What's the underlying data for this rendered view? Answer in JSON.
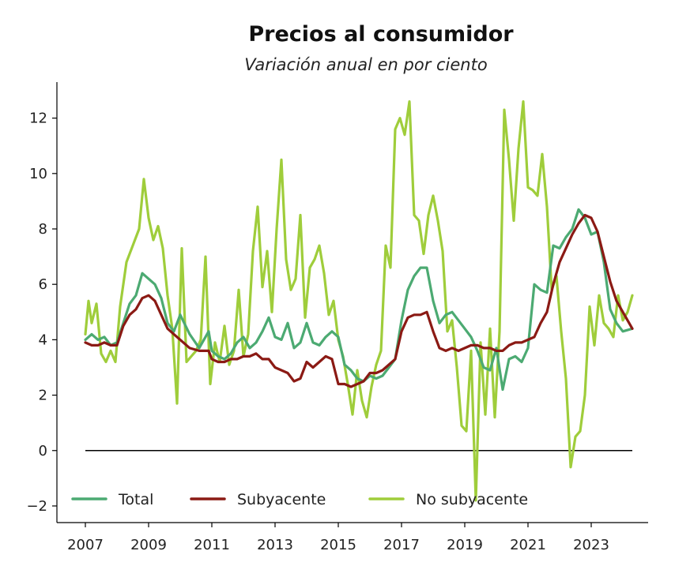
{
  "chart_data": {
    "type": "line",
    "title": "Precios al consumidor",
    "subtitle": "Variación anual en por ciento",
    "xlabel": "",
    "ylabel": "",
    "xlim": [
      2006.1,
      2024.8
    ],
    "ylim": [
      -2.6,
      13.3
    ],
    "x_ticks": [
      2007,
      2009,
      2011,
      2013,
      2015,
      2017,
      2019,
      2021,
      2023
    ],
    "y_ticks": [
      -2,
      0,
      2,
      4,
      6,
      8,
      10,
      12
    ],
    "y_tick_labels": [
      "−2",
      "0",
      "2",
      "4",
      "6",
      "8",
      "10",
      "12"
    ],
    "reference_line": {
      "y": 0,
      "x_from": 2007.0,
      "x_to": 2024.3,
      "color": "#000000"
    },
    "grid": false,
    "legend_position": "bottom",
    "series": [
      {
        "name": "Total",
        "color": "#4caa72",
        "x": [
          2007.0,
          2007.2,
          2007.4,
          2007.6,
          2007.8,
          2008.0,
          2008.2,
          2008.4,
          2008.6,
          2008.8,
          2009.0,
          2009.2,
          2009.4,
          2009.6,
          2009.8,
          2010.0,
          2010.3,
          2010.6,
          2010.9,
          2011.0,
          2011.2,
          2011.4,
          2011.6,
          2011.8,
          2012.0,
          2012.2,
          2012.4,
          2012.6,
          2012.8,
          2013.0,
          2013.2,
          2013.4,
          2013.6,
          2013.8,
          2014.0,
          2014.2,
          2014.4,
          2014.6,
          2014.8,
          2015.0,
          2015.2,
          2015.4,
          2015.6,
          2015.8,
          2016.0,
          2016.2,
          2016.4,
          2016.6,
          2016.8,
          2017.0,
          2017.2,
          2017.4,
          2017.6,
          2017.8,
          2018.0,
          2018.2,
          2018.4,
          2018.6,
          2018.8,
          2019.0,
          2019.2,
          2019.4,
          2019.6,
          2019.8,
          2020.0,
          2020.2,
          2020.4,
          2020.6,
          2020.8,
          2021.0,
          2021.2,
          2021.4,
          2021.6,
          2021.8,
          2022.0,
          2022.2,
          2022.4,
          2022.6,
          2022.8,
          2023.0,
          2023.2,
          2023.4,
          2023.6,
          2023.8,
          2024.0,
          2024.3
        ],
        "y": [
          4.0,
          4.2,
          4.0,
          4.1,
          3.8,
          3.9,
          4.6,
          5.3,
          5.6,
          6.4,
          6.2,
          6.0,
          5.5,
          4.6,
          4.3,
          4.9,
          4.2,
          3.7,
          4.3,
          3.6,
          3.4,
          3.3,
          3.5,
          3.9,
          4.1,
          3.7,
          3.9,
          4.3,
          4.8,
          4.1,
          4.0,
          4.6,
          3.7,
          3.9,
          4.6,
          3.9,
          3.8,
          4.1,
          4.3,
          4.1,
          3.1,
          2.9,
          2.6,
          2.5,
          2.7,
          2.6,
          2.7,
          3.0,
          3.3,
          4.7,
          5.8,
          6.3,
          6.6,
          6.6,
          5.4,
          4.6,
          4.9,
          5.0,
          4.7,
          4.4,
          4.1,
          3.6,
          3.0,
          2.9,
          3.7,
          2.2,
          3.3,
          3.4,
          3.2,
          3.7,
          6.0,
          5.8,
          5.7,
          7.4,
          7.3,
          7.7,
          8.0,
          8.7,
          8.4,
          7.8,
          7.9,
          6.8,
          5.1,
          4.6,
          4.3,
          4.4
        ],
        "label_note": ""
      },
      {
        "name": "Subyacente",
        "color": "#8b1a14",
        "x": [
          2007.0,
          2007.2,
          2007.4,
          2007.6,
          2007.8,
          2008.0,
          2008.2,
          2008.4,
          2008.6,
          2008.8,
          2009.0,
          2009.2,
          2009.4,
          2009.6,
          2009.8,
          2010.0,
          2010.3,
          2010.6,
          2010.9,
          2011.0,
          2011.2,
          2011.4,
          2011.6,
          2011.8,
          2012.0,
          2012.2,
          2012.4,
          2012.6,
          2012.8,
          2013.0,
          2013.2,
          2013.4,
          2013.6,
          2013.8,
          2014.0,
          2014.2,
          2014.4,
          2014.6,
          2014.8,
          2015.0,
          2015.2,
          2015.4,
          2015.6,
          2015.8,
          2016.0,
          2016.2,
          2016.4,
          2016.6,
          2016.8,
          2017.0,
          2017.2,
          2017.4,
          2017.6,
          2017.8,
          2018.0,
          2018.2,
          2018.4,
          2018.6,
          2018.8,
          2019.0,
          2019.2,
          2019.4,
          2019.6,
          2019.8,
          2020.0,
          2020.2,
          2020.4,
          2020.6,
          2020.8,
          2021.0,
          2021.2,
          2021.4,
          2021.6,
          2021.8,
          2022.0,
          2022.2,
          2022.4,
          2022.6,
          2022.8,
          2023.0,
          2023.2,
          2023.4,
          2023.6,
          2023.8,
          2024.0,
          2024.3
        ],
        "y": [
          3.9,
          3.8,
          3.8,
          3.9,
          3.8,
          3.8,
          4.5,
          4.9,
          5.1,
          5.5,
          5.6,
          5.4,
          4.9,
          4.4,
          4.2,
          4.0,
          3.7,
          3.6,
          3.6,
          3.3,
          3.2,
          3.2,
          3.3,
          3.3,
          3.4,
          3.4,
          3.5,
          3.3,
          3.3,
          3.0,
          2.9,
          2.8,
          2.5,
          2.6,
          3.2,
          3.0,
          3.2,
          3.4,
          3.3,
          2.4,
          2.4,
          2.3,
          2.4,
          2.5,
          2.8,
          2.8,
          2.9,
          3.1,
          3.3,
          4.3,
          4.8,
          4.9,
          4.9,
          5.0,
          4.3,
          3.7,
          3.6,
          3.7,
          3.6,
          3.7,
          3.8,
          3.8,
          3.7,
          3.7,
          3.6,
          3.6,
          3.8,
          3.9,
          3.9,
          4.0,
          4.1,
          4.6,
          5.0,
          6.0,
          6.8,
          7.3,
          7.8,
          8.2,
          8.5,
          8.4,
          7.9,
          7.0,
          6.1,
          5.4,
          5.0,
          4.4
        ],
        "label_note": ""
      },
      {
        "name": "No subyacente",
        "color": "#9fcd3b",
        "x": [
          2007.0,
          2007.1,
          2007.2,
          2007.35,
          2007.5,
          2007.65,
          2007.8,
          2007.95,
          2008.1,
          2008.3,
          2008.5,
          2008.7,
          2008.85,
          2009.0,
          2009.15,
          2009.3,
          2009.45,
          2009.6,
          2009.75,
          2009.9,
          2010.05,
          2010.2,
          2010.35,
          2010.5,
          2010.65,
          2010.8,
          2010.95,
          2011.1,
          2011.25,
          2011.4,
          2011.55,
          2011.7,
          2011.85,
          2012.0,
          2012.15,
          2012.3,
          2012.45,
          2012.6,
          2012.75,
          2012.9,
          2013.05,
          2013.2,
          2013.35,
          2013.5,
          2013.65,
          2013.8,
          2013.95,
          2014.1,
          2014.25,
          2014.4,
          2014.55,
          2014.7,
          2014.85,
          2015.0,
          2015.15,
          2015.3,
          2015.45,
          2015.6,
          2015.75,
          2015.9,
          2016.05,
          2016.2,
          2016.35,
          2016.5,
          2016.65,
          2016.8,
          2016.95,
          2017.1,
          2017.25,
          2017.4,
          2017.55,
          2017.7,
          2017.85,
          2018.0,
          2018.15,
          2018.3,
          2018.45,
          2018.6,
          2018.75,
          2018.9,
          2019.05,
          2019.2,
          2019.35,
          2019.5,
          2019.65,
          2019.8,
          2019.95,
          2020.1,
          2020.25,
          2020.4,
          2020.55,
          2020.7,
          2020.85,
          2021.0,
          2021.15,
          2021.3,
          2021.45,
          2021.6,
          2021.75,
          2021.9,
          2022.05,
          2022.2,
          2022.35,
          2022.5,
          2022.65,
          2022.8,
          2022.95,
          2023.1,
          2023.25,
          2023.4,
          2023.55,
          2023.7,
          2023.85,
          2024.0,
          2024.15,
          2024.3
        ],
        "y": [
          4.2,
          5.4,
          4.6,
          5.3,
          3.5,
          3.2,
          3.6,
          3.2,
          5.2,
          6.8,
          7.4,
          8.0,
          9.8,
          8.4,
          7.6,
          8.1,
          7.3,
          5.6,
          4.4,
          1.7,
          7.3,
          3.2,
          3.4,
          3.6,
          4.0,
          7.0,
          2.4,
          3.9,
          3.2,
          4.5,
          3.1,
          3.6,
          5.8,
          3.4,
          4.2,
          7.2,
          8.8,
          5.9,
          7.2,
          5.0,
          8.0,
          10.5,
          6.9,
          5.8,
          6.2,
          8.5,
          4.8,
          6.6,
          6.9,
          7.4,
          6.4,
          4.9,
          5.4,
          4.0,
          3.4,
          2.4,
          1.3,
          2.9,
          1.8,
          1.2,
          2.3,
          3.1,
          3.6,
          7.4,
          6.6,
          11.6,
          12.0,
          11.4,
          12.6,
          8.5,
          8.3,
          7.1,
          8.5,
          9.2,
          8.3,
          7.2,
          4.3,
          4.7,
          3.0,
          0.9,
          0.7,
          3.6,
          -1.8,
          3.9,
          1.3,
          4.4,
          1.2,
          4.3,
          12.3,
          10.5,
          8.3,
          10.9,
          12.6,
          9.5,
          9.4,
          9.2,
          10.7,
          8.8,
          5.8,
          6.3,
          4.3,
          2.6,
          -0.6,
          0.5,
          0.7,
          2.0,
          5.2,
          3.8,
          5.6,
          4.6,
          4.4,
          4.1,
          5.6,
          4.7,
          5.0,
          5.6
        ],
        "label_note": ""
      }
    ]
  }
}
